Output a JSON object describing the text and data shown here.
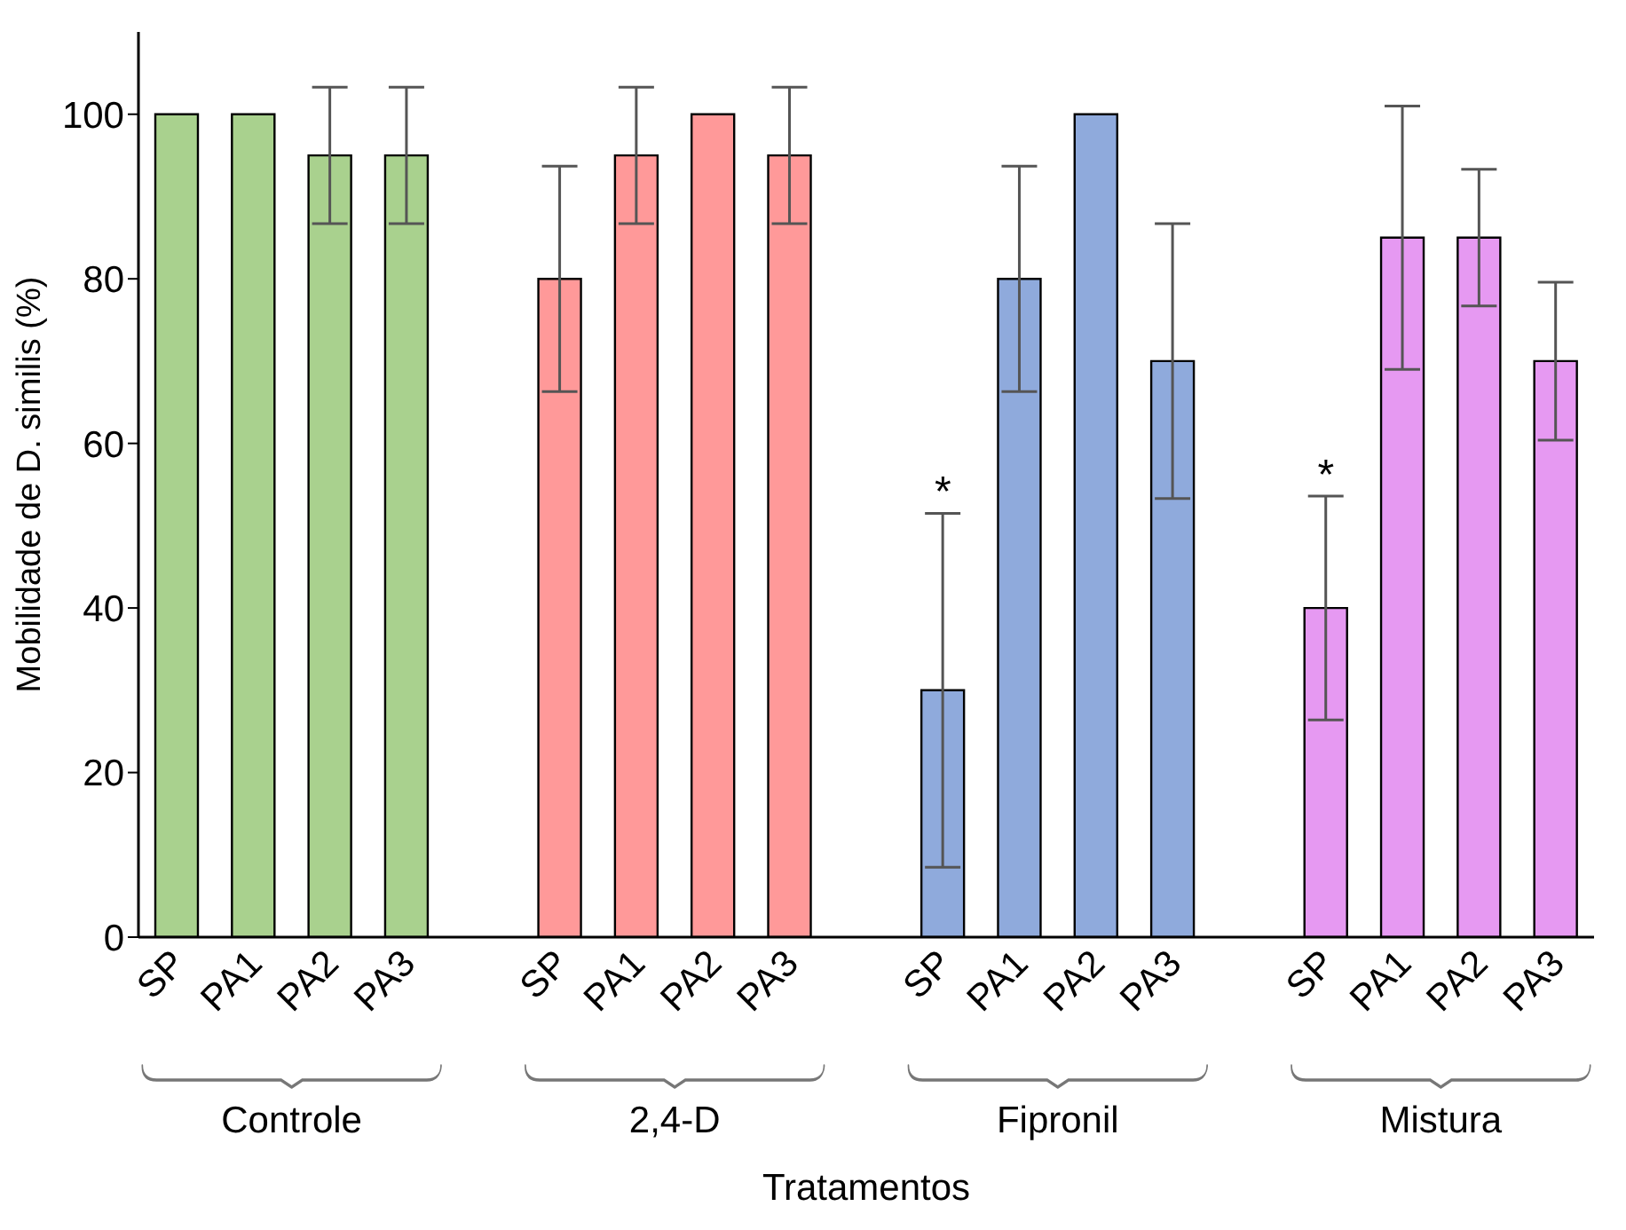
{
  "chart_data": {
    "type": "bar",
    "xlabel": "Tratamentos",
    "ylabel": "Mobilidade de D. similis (%)",
    "categories": [
      "SP",
      "PA1",
      "PA2",
      "PA3",
      null,
      "SP",
      "PA1",
      "PA2",
      "PA3",
      null,
      "SP",
      "PA1",
      "PA2",
      "PA3",
      null,
      "SP",
      "PA1",
      "PA2",
      "PA3"
    ],
    "values": [
      100,
      100,
      95,
      95,
      null,
      80,
      95,
      100,
      95,
      null,
      30,
      80,
      100,
      70,
      null,
      40,
      85,
      85,
      70
    ],
    "errors": [
      null,
      null,
      8.3,
      8.3,
      null,
      13.7,
      8.3,
      null,
      8.3,
      null,
      21.5,
      13.7,
      null,
      16.7,
      null,
      13.6,
      16,
      8.3,
      9.6
    ],
    "colors": [
      "#a9d18e",
      "#a9d18e",
      "#a9d18e",
      "#a9d18e",
      "#ffffff",
      "#ff9999",
      "#ff9999",
      "#ff9999",
      "#ff9999",
      "#ffffff",
      "#8faadc",
      "#8faadc",
      "#8faadc",
      "#8faadc",
      "#ffffff",
      "#e699f2",
      "#e699f2",
      "#e699f2",
      "#e699f2"
    ],
    "ylim": [
      0,
      110
    ],
    "yticks": [
      0,
      20,
      40,
      60,
      80,
      100
    ],
    "grid": false,
    "legend": false,
    "annotations": [
      "Controle",
      "2,4-D",
      "Fipronil",
      "Mistura",
      "*",
      "*"
    ]
  }
}
